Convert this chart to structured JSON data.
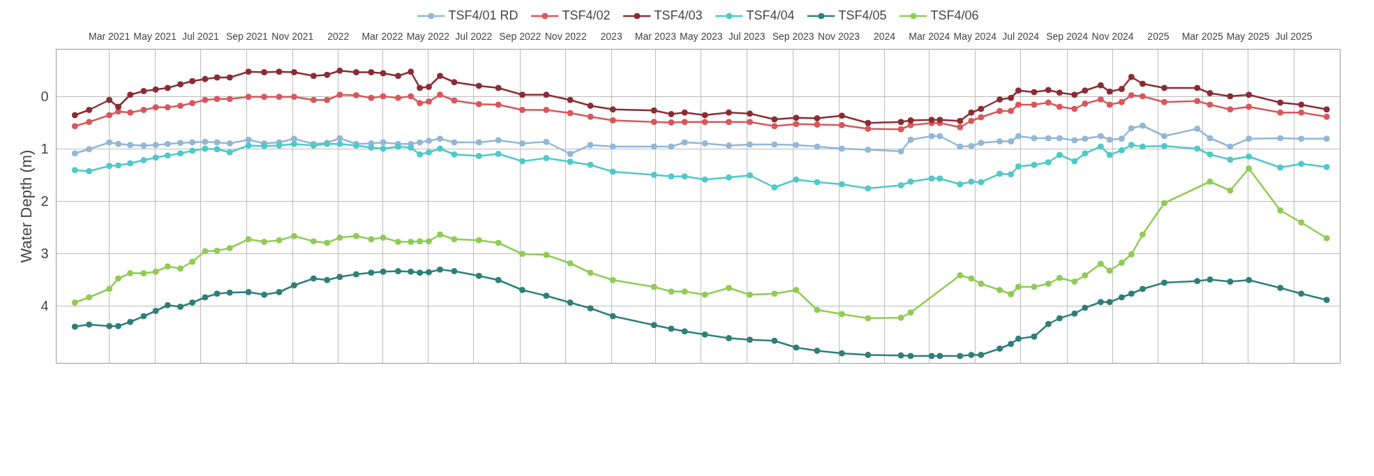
{
  "chart_data": {
    "type": "line",
    "ylabel": "Water Depth (m)",
    "x": [
      "2021-01-14",
      "2021-02-02",
      "2021-03-01",
      "2021-03-13",
      "2021-03-29",
      "2021-04-16",
      "2021-05-02",
      "2021-05-18",
      "2021-06-04",
      "2021-06-20",
      "2021-07-07",
      "2021-07-23",
      "2021-08-09",
      "2021-09-03",
      "2021-09-24",
      "2021-10-14",
      "2021-11-03",
      "2021-11-29",
      "2021-12-17",
      "2022-01-03",
      "2022-01-25",
      "2022-02-14",
      "2022-03-02",
      "2022-03-22",
      "2022-04-08",
      "2022-04-20",
      "2022-05-02",
      "2022-05-17",
      "2022-06-05",
      "2022-07-08",
      "2022-08-03",
      "2022-09-04",
      "2022-10-06",
      "2022-11-07",
      "2022-12-04",
      "2023-01-03",
      "2023-02-27",
      "2023-03-22",
      "2023-04-09",
      "2023-05-06",
      "2023-06-07",
      "2023-07-05",
      "2023-08-07",
      "2023-09-05",
      "2023-10-03",
      "2023-11-05",
      "2023-12-10",
      "2024-01-23",
      "2024-02-05",
      "2024-03-04",
      "2024-03-15",
      "2024-04-11",
      "2024-04-26",
      "2024-05-09",
      "2024-06-03",
      "2024-06-18",
      "2024-06-28",
      "2024-07-19",
      "2024-08-07",
      "2024-08-22",
      "2024-09-11",
      "2024-09-25",
      "2024-10-16",
      "2024-10-28",
      "2024-11-13",
      "2024-11-26",
      "2024-12-11",
      "2025-01-09",
      "2025-02-22",
      "2025-03-11",
      "2025-04-07",
      "2025-05-02",
      "2025-06-13",
      "2025-07-11",
      "2025-08-14"
    ],
    "series": [
      {
        "name": "TSF4/01 RD",
        "color": "#93b7d6",
        "values": [
          1.09,
          1.01,
          0.88,
          0.91,
          0.93,
          0.94,
          0.93,
          0.91,
          0.89,
          0.88,
          0.87,
          0.88,
          0.9,
          0.83,
          0.9,
          0.88,
          0.81,
          0.91,
          0.89,
          0.8,
          0.91,
          0.9,
          0.88,
          0.91,
          0.91,
          0.88,
          0.85,
          0.81,
          0.88,
          0.88,
          0.84,
          0.9,
          0.87,
          1.1,
          0.93,
          0.96,
          0.96,
          0.96,
          0.88,
          0.9,
          0.94,
          0.92,
          0.92,
          0.93,
          0.96,
          1.0,
          1.02,
          1.05,
          0.83,
          0.76,
          0.76,
          0.96,
          0.95,
          0.89,
          0.86,
          0.86,
          0.76,
          0.8,
          0.8,
          0.8,
          0.84,
          0.81,
          0.76,
          0.83,
          0.81,
          0.61,
          0.56,
          0.76,
          0.62,
          0.8,
          0.96,
          0.81,
          0.8,
          0.81,
          0.81
        ]
      },
      {
        "name": "TSF4/02",
        "color": "#d9575b",
        "values": [
          0.57,
          0.49,
          0.36,
          0.29,
          0.31,
          0.26,
          0.21,
          0.21,
          0.18,
          0.13,
          0.07,
          0.05,
          0.05,
          0.01,
          0.01,
          0.01,
          0.01,
          0.07,
          0.07,
          -0.03,
          -0.02,
          0.03,
          0,
          0.03,
          0,
          0.13,
          0.1,
          -0.03,
          0.08,
          0.15,
          0.16,
          0.26,
          0.26,
          0.32,
          0.39,
          0.46,
          0.49,
          0.5,
          0.49,
          0.49,
          0.49,
          0.49,
          0.57,
          0.53,
          0.54,
          0.55,
          0.62,
          0.63,
          0.55,
          0.51,
          0.51,
          0.59,
          0.47,
          0.4,
          0.28,
          0.28,
          0.16,
          0.16,
          0.12,
          0.2,
          0.24,
          0.14,
          0.06,
          0.16,
          0.11,
          -0.02,
          0,
          0.11,
          0.09,
          0.16,
          0.25,
          0.2,
          0.31,
          0.31,
          0.39
        ]
      },
      {
        "name": "TSF4/03",
        "color": "#8b2c35",
        "values": [
          0.36,
          0.26,
          0.07,
          0.2,
          -0.03,
          -0.1,
          -0.13,
          -0.16,
          -0.23,
          -0.29,
          -0.33,
          -0.36,
          -0.36,
          -0.47,
          -0.46,
          -0.47,
          -0.46,
          -0.39,
          -0.41,
          -0.49,
          -0.46,
          -0.46,
          -0.44,
          -0.39,
          -0.47,
          -0.16,
          -0.18,
          -0.39,
          -0.27,
          -0.2,
          -0.16,
          -0.03,
          -0.03,
          0.07,
          0.18,
          0.25,
          0.27,
          0.34,
          0.31,
          0.36,
          0.31,
          0.33,
          0.44,
          0.41,
          0.42,
          0.37,
          0.51,
          0.49,
          0.46,
          0.45,
          0.45,
          0.47,
          0.31,
          0.24,
          0.06,
          0.03,
          -0.11,
          -0.08,
          -0.12,
          -0.07,
          -0.03,
          -0.11,
          -0.21,
          -0.09,
          -0.14,
          -0.37,
          -0.24,
          -0.16,
          -0.16,
          -0.06,
          0,
          -0.03,
          0.12,
          0.16,
          0.25
        ]
      },
      {
        "name": "TSF4/04",
        "color": "#4fc9c9",
        "values": [
          1.41,
          1.43,
          1.33,
          1.32,
          1.28,
          1.22,
          1.17,
          1.13,
          1.09,
          1.04,
          1.0,
          1.01,
          1.07,
          0.94,
          0.95,
          0.94,
          0.91,
          0.94,
          0.91,
          0.91,
          0.94,
          0.98,
          1.0,
          0.96,
          0.98,
          1.11,
          1.07,
          1.0,
          1.11,
          1.14,
          1.1,
          1.24,
          1.18,
          1.25,
          1.31,
          1.44,
          1.5,
          1.53,
          1.53,
          1.59,
          1.55,
          1.51,
          1.74,
          1.59,
          1.64,
          1.68,
          1.76,
          1.7,
          1.63,
          1.57,
          1.57,
          1.68,
          1.63,
          1.64,
          1.48,
          1.49,
          1.34,
          1.31,
          1.26,
          1.12,
          1.24,
          1.09,
          0.96,
          1.12,
          1.03,
          0.93,
          0.96,
          0.95,
          1.0,
          1.11,
          1.21,
          1.15,
          1.36,
          1.29,
          1.35
        ]
      },
      {
        "name": "TSF4/05",
        "color": "#2e7f7a",
        "values": [
          4.4,
          4.36,
          4.39,
          4.39,
          4.31,
          4.2,
          4.1,
          3.99,
          4.02,
          3.94,
          3.84,
          3.77,
          3.75,
          3.74,
          3.79,
          3.74,
          3.61,
          3.48,
          3.51,
          3.45,
          3.4,
          3.37,
          3.35,
          3.34,
          3.35,
          3.37,
          3.36,
          3.31,
          3.34,
          3.43,
          3.51,
          3.7,
          3.81,
          3.94,
          4.05,
          4.2,
          4.37,
          4.44,
          4.49,
          4.55,
          4.62,
          4.65,
          4.67,
          4.8,
          4.86,
          4.91,
          4.94,
          4.95,
          4.96,
          4.96,
          4.96,
          4.96,
          4.94,
          4.94,
          4.82,
          4.73,
          4.63,
          4.59,
          4.35,
          4.24,
          4.15,
          4.04,
          3.93,
          3.93,
          3.84,
          3.77,
          3.68,
          3.56,
          3.53,
          3.5,
          3.54,
          3.51,
          3.66,
          3.77,
          3.89
        ]
      },
      {
        "name": "TSF4/06",
        "color": "#8fcc55",
        "x": [
          "2021-01-14",
          "2021-02-02",
          "2021-03-01",
          "2021-03-13",
          "2021-03-29",
          "2021-04-16",
          "2021-05-02",
          "2021-05-18",
          "2021-06-04",
          "2021-06-20",
          "2021-07-07",
          "2021-07-23",
          "2021-08-09",
          "2021-09-03",
          "2021-09-24",
          "2021-10-14",
          "2021-11-03",
          "2021-11-29",
          "2021-12-17",
          "2022-01-03",
          "2022-01-25",
          "2022-02-14",
          "2022-03-02",
          "2022-03-22",
          "2022-04-08",
          "2022-04-20",
          "2022-05-02",
          "2022-05-17",
          "2022-06-05",
          "2022-07-08",
          "2022-08-03",
          "2022-09-04",
          "2022-10-06",
          "2022-11-07",
          "2022-12-04",
          "2023-01-03",
          "2023-02-27",
          "2023-03-22",
          "2023-04-09",
          "2023-05-06",
          "2023-06-07",
          "2023-07-05",
          "2023-08-07",
          "2023-09-05",
          "2023-10-03",
          "2023-11-05",
          "2023-12-10",
          "2024-01-23",
          "2024-02-05",
          "2024-04-11",
          "2024-04-26",
          "2024-05-09",
          "2024-06-03",
          "2024-06-18",
          "2024-06-28",
          "2024-07-19",
          "2024-08-07",
          "2024-08-22",
          "2024-09-11",
          "2024-09-25",
          "2024-10-16",
          "2024-10-28",
          "2024-11-13",
          "2024-11-26",
          "2024-12-11",
          "2025-01-09",
          "2025-03-11",
          "2025-04-07",
          "2025-05-02",
          "2025-06-13",
          "2025-07-11",
          "2025-08-14"
        ],
        "values": [
          3.94,
          3.84,
          3.68,
          3.48,
          3.38,
          3.38,
          3.35,
          3.25,
          3.29,
          3.16,
          2.96,
          2.95,
          2.9,
          2.73,
          2.78,
          2.75,
          2.67,
          2.77,
          2.8,
          2.7,
          2.67,
          2.73,
          2.7,
          2.78,
          2.78,
          2.77,
          2.77,
          2.64,
          2.73,
          2.75,
          2.8,
          3.01,
          3.03,
          3.19,
          3.37,
          3.51,
          3.64,
          3.73,
          3.73,
          3.79,
          3.66,
          3.79,
          3.77,
          3.7,
          4.08,
          4.16,
          4.24,
          4.23,
          4.13,
          3.42,
          3.48,
          3.58,
          3.7,
          3.78,
          3.64,
          3.64,
          3.58,
          3.47,
          3.54,
          3.42,
          3.2,
          3.33,
          3.18,
          3.02,
          2.64,
          2.04,
          1.63,
          1.8,
          1.38,
          2.18,
          2.41,
          2.71
        ]
      }
    ],
    "xlim": [
      "2020-12-20",
      "2025-09-01"
    ],
    "xticks": [
      {
        "value": "2021-03-01",
        "label": "Mar 2021"
      },
      {
        "value": "2021-05-01",
        "label": "May 2021"
      },
      {
        "value": "2021-07-01",
        "label": "Jul 2021"
      },
      {
        "value": "2021-09-01",
        "label": "Sep 2021"
      },
      {
        "value": "2021-11-01",
        "label": "Nov 2021"
      },
      {
        "value": "2022-01-01",
        "label": "2022"
      },
      {
        "value": "2022-03-01",
        "label": "Mar 2022"
      },
      {
        "value": "2022-05-01",
        "label": "May 2022"
      },
      {
        "value": "2022-07-01",
        "label": "Jul 2022"
      },
      {
        "value": "2022-09-01",
        "label": "Sep 2022"
      },
      {
        "value": "2022-11-01",
        "label": "Nov 2022"
      },
      {
        "value": "2023-01-01",
        "label": "2023"
      },
      {
        "value": "2023-03-01",
        "label": "Mar 2023"
      },
      {
        "value": "2023-05-01",
        "label": "May 2023"
      },
      {
        "value": "2023-07-01",
        "label": "Jul 2023"
      },
      {
        "value": "2023-09-01",
        "label": "Sep 2023"
      },
      {
        "value": "2023-11-01",
        "label": "Nov 2023"
      },
      {
        "value": "2024-01-01",
        "label": "2024"
      },
      {
        "value": "2024-03-01",
        "label": "Mar 2024"
      },
      {
        "value": "2024-05-01",
        "label": "May 2024"
      },
      {
        "value": "2024-07-01",
        "label": "Jul 2024"
      },
      {
        "value": "2024-09-01",
        "label": "Sep 2024"
      },
      {
        "value": "2024-11-01",
        "label": "Nov 2024"
      },
      {
        "value": "2025-01-01",
        "label": "2025"
      },
      {
        "value": "2025-03-01",
        "label": "Mar 2025"
      },
      {
        "value": "2025-05-01",
        "label": "May 2025"
      },
      {
        "value": "2025-07-01",
        "label": "Jul 2025"
      }
    ],
    "ylim": [
      5.1,
      -0.9
    ],
    "yticks": [
      0,
      1,
      2,
      3,
      4
    ],
    "grid": true,
    "legend": "top",
    "marker": "circle",
    "line_style": "solid"
  }
}
